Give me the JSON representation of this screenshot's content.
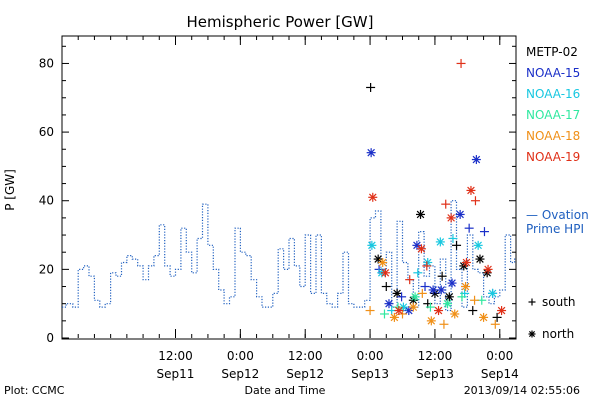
{
  "chart_data": {
    "type": "scatter",
    "title": "Hemispheric Power [GW]",
    "ylabel": "P [GW]",
    "xlabel": "Date and Time",
    "xlim": [
      "2013-09-10T15:00",
      "2013-09-14T03:00"
    ],
    "ylim": [
      0,
      88
    ],
    "yticks": [
      0,
      20,
      40,
      60,
      80
    ],
    "xticks": [
      {
        "x": "2013-09-11T12:00",
        "time": "12:00",
        "date": "Sep11"
      },
      {
        "x": "2013-09-12T00:00",
        "time": "0:00",
        "date": "Sep12"
      },
      {
        "x": "2013-09-12T12:00",
        "time": "12:00",
        "date": "Sep12"
      },
      {
        "x": "2013-09-13T00:00",
        "time": "0:00",
        "date": "Sep13"
      },
      {
        "x": "2013-09-13T12:00",
        "time": "12:00",
        "date": "Sep13"
      },
      {
        "x": "2013-09-14T00:00",
        "time": "0:00",
        "date": "Sep14"
      }
    ],
    "ovation": {
      "name": "— Ovation Prime HPI",
      "color": "#2060c0",
      "points": [
        [
          "2013-09-10T15:00",
          9
        ],
        [
          "2013-09-10T16:30",
          10
        ],
        [
          "2013-09-10T17:30",
          9
        ],
        [
          "2013-09-10T18:30",
          20
        ],
        [
          "2013-09-10T19:30",
          21
        ],
        [
          "2013-09-10T20:30",
          18
        ],
        [
          "2013-09-10T21:30",
          11
        ],
        [
          "2013-09-10T22:30",
          9
        ],
        [
          "2013-09-10T23:30",
          10
        ],
        [
          "2013-09-11T00:30",
          19
        ],
        [
          "2013-09-11T01:30",
          18
        ],
        [
          "2013-09-11T02:30",
          22
        ],
        [
          "2013-09-11T03:30",
          24
        ],
        [
          "2013-09-11T04:30",
          23
        ],
        [
          "2013-09-11T05:30",
          21
        ],
        [
          "2013-09-11T06:30",
          17
        ],
        [
          "2013-09-11T07:30",
          21
        ],
        [
          "2013-09-11T08:30",
          24
        ],
        [
          "2013-09-11T09:30",
          33
        ],
        [
          "2013-09-11T10:30",
          21
        ],
        [
          "2013-09-11T11:30",
          18
        ],
        [
          "2013-09-11T12:30",
          20
        ],
        [
          "2013-09-11T13:30",
          32
        ],
        [
          "2013-09-11T14:30",
          25
        ],
        [
          "2013-09-11T15:30",
          19
        ],
        [
          "2013-09-11T16:30",
          29
        ],
        [
          "2013-09-11T17:30",
          39
        ],
        [
          "2013-09-11T18:30",
          27
        ],
        [
          "2013-09-11T19:30",
          20
        ],
        [
          "2013-09-11T20:30",
          14
        ],
        [
          "2013-09-11T21:30",
          10
        ],
        [
          "2013-09-11T22:30",
          12
        ],
        [
          "2013-09-11T23:30",
          32
        ],
        [
          "2013-09-12T00:30",
          25
        ],
        [
          "2013-09-12T01:30",
          24
        ],
        [
          "2013-09-12T02:30",
          17
        ],
        [
          "2013-09-12T03:30",
          12
        ],
        [
          "2013-09-12T04:30",
          9
        ],
        [
          "2013-09-12T05:30",
          9
        ],
        [
          "2013-09-12T06:30",
          13
        ],
        [
          "2013-09-12T07:30",
          26
        ],
        [
          "2013-09-12T08:30",
          20
        ],
        [
          "2013-09-12T09:30",
          29
        ],
        [
          "2013-09-12T10:30",
          21
        ],
        [
          "2013-09-12T11:30",
          15
        ],
        [
          "2013-09-12T12:30",
          30
        ],
        [
          "2013-09-12T13:30",
          13
        ],
        [
          "2013-09-12T14:30",
          30
        ],
        [
          "2013-09-12T15:30",
          13
        ],
        [
          "2013-09-12T16:30",
          10
        ],
        [
          "2013-09-12T17:30",
          9
        ],
        [
          "2013-09-12T18:30",
          13
        ],
        [
          "2013-09-12T19:30",
          25
        ],
        [
          "2013-09-12T20:30",
          10
        ],
        [
          "2013-09-12T21:30",
          9
        ],
        [
          "2013-09-12T22:30",
          9
        ],
        [
          "2013-09-12T23:30",
          11
        ],
        [
          "2013-09-13T00:30",
          35
        ],
        [
          "2013-09-13T01:30",
          37
        ],
        [
          "2013-09-13T02:30",
          20
        ],
        [
          "2013-09-13T03:30",
          25
        ],
        [
          "2013-09-13T04:30",
          9
        ],
        [
          "2013-09-13T05:30",
          34
        ],
        [
          "2013-09-13T06:30",
          22
        ],
        [
          "2013-09-13T07:30",
          17
        ],
        [
          "2013-09-13T08:30",
          9
        ],
        [
          "2013-09-13T09:30",
          31
        ],
        [
          "2013-09-13T10:30",
          18
        ],
        [
          "2013-09-13T11:30",
          21
        ],
        [
          "2013-09-13T12:30",
          10
        ],
        [
          "2013-09-13T13:30",
          23
        ],
        [
          "2013-09-13T14:30",
          8
        ],
        [
          "2013-09-13T15:30",
          40
        ],
        [
          "2013-09-13T16:30",
          20
        ],
        [
          "2013-09-13T17:30",
          9
        ],
        [
          "2013-09-13T18:30",
          30
        ],
        [
          "2013-09-13T19:30",
          20
        ],
        [
          "2013-09-13T20:30",
          19
        ],
        [
          "2013-09-13T21:30",
          12
        ],
        [
          "2013-09-13T22:30",
          10
        ],
        [
          "2013-09-13T23:30",
          12
        ],
        [
          "2013-09-14T00:30",
          14
        ],
        [
          "2013-09-14T01:30",
          30
        ],
        [
          "2013-09-14T02:30",
          22
        ],
        [
          "2013-09-14T03:00",
          23
        ]
      ]
    },
    "series": [
      {
        "name": "METP-02",
        "color": "#000000",
        "points": [
          [
            "2013-09-13T00:06",
            73,
            "+"
          ],
          [
            "2013-09-13T01:30",
            23,
            "*"
          ],
          [
            "2013-09-13T03:00",
            15,
            "+"
          ],
          [
            "2013-09-13T05:00",
            13,
            "*"
          ],
          [
            "2013-09-13T08:00",
            11,
            "*"
          ],
          [
            "2013-09-13T09:20",
            36,
            "*"
          ],
          [
            "2013-09-13T10:40",
            10,
            "+"
          ],
          [
            "2013-09-13T12:00",
            13,
            "*"
          ],
          [
            "2013-09-13T13:20",
            18,
            "+"
          ],
          [
            "2013-09-13T14:40",
            12,
            "*"
          ],
          [
            "2013-09-13T16:00",
            27,
            "+"
          ],
          [
            "2013-09-13T17:20",
            21,
            "*"
          ],
          [
            "2013-09-13T19:00",
            8,
            "+"
          ],
          [
            "2013-09-13T20:20",
            23,
            "*"
          ],
          [
            "2013-09-13T21:40",
            19,
            "*"
          ],
          [
            "2013-09-13T23:30",
            6,
            "+"
          ]
        ]
      },
      {
        "name": "NOAA-15",
        "color": "#1a2fc8",
        "points": [
          [
            "2013-09-13T00:12",
            54,
            "*"
          ],
          [
            "2013-09-13T01:40",
            20,
            "+"
          ],
          [
            "2013-09-13T03:30",
            10,
            "*"
          ],
          [
            "2013-09-13T05:50",
            12,
            "+"
          ],
          [
            "2013-09-13T07:10",
            8,
            "*"
          ],
          [
            "2013-09-13T08:40",
            27,
            "*"
          ],
          [
            "2013-09-13T10:10",
            15,
            "+"
          ],
          [
            "2013-09-13T11:40",
            14,
            "*"
          ],
          [
            "2013-09-13T13:10",
            14,
            "*"
          ],
          [
            "2013-09-13T15:10",
            16,
            "*"
          ],
          [
            "2013-09-13T16:40",
            36,
            "*"
          ],
          [
            "2013-09-13T18:20",
            32,
            "+"
          ],
          [
            "2013-09-13T19:40",
            52,
            "*"
          ],
          [
            "2013-09-13T21:10",
            31,
            "+"
          ],
          [
            "2013-09-13T22:40",
            13,
            "+"
          ]
        ]
      },
      {
        "name": "NOAA-16",
        "color": "#18c8e0",
        "points": [
          [
            "2013-09-13T00:20",
            27,
            "*"
          ],
          [
            "2013-09-13T02:10",
            19,
            "*"
          ],
          [
            "2013-09-13T04:00",
            8,
            "+"
          ],
          [
            "2013-09-13T06:10",
            9,
            "*"
          ],
          [
            "2013-09-13T08:50",
            19,
            "+"
          ],
          [
            "2013-09-13T10:40",
            22,
            "*"
          ],
          [
            "2013-09-13T13:00",
            28,
            "*"
          ],
          [
            "2013-09-13T15:20",
            29,
            "+"
          ],
          [
            "2013-09-13T17:30",
            13,
            "+"
          ],
          [
            "2013-09-13T20:00",
            27,
            "*"
          ],
          [
            "2013-09-13T22:40",
            13,
            "*"
          ]
        ]
      },
      {
        "name": "NOAA-17",
        "color": "#30e8a0",
        "points": [
          [
            "2013-09-13T02:40",
            7,
            "+"
          ],
          [
            "2013-09-13T05:10",
            9,
            "+"
          ],
          [
            "2013-09-13T08:20",
            12,
            "*"
          ],
          [
            "2013-09-13T11:10",
            9,
            "+"
          ],
          [
            "2013-09-13T14:20",
            10,
            "*"
          ],
          [
            "2013-09-13T17:00",
            12,
            "+"
          ],
          [
            "2013-09-13T20:40",
            11,
            "+"
          ]
        ]
      },
      {
        "name": "NOAA-18",
        "color": "#f09018",
        "points": [
          [
            "2013-09-13T00:00",
            8,
            "+"
          ],
          [
            "2013-09-13T02:20",
            22,
            "*"
          ],
          [
            "2013-09-13T04:30",
            6,
            "*"
          ],
          [
            "2013-09-13T06:00",
            7,
            "+"
          ],
          [
            "2013-09-13T08:00",
            9,
            "*"
          ],
          [
            "2013-09-13T09:40",
            13,
            "+"
          ],
          [
            "2013-09-13T11:20",
            5,
            "*"
          ],
          [
            "2013-09-13T13:40",
            4,
            "+"
          ],
          [
            "2013-09-13T15:40",
            7,
            "*"
          ],
          [
            "2013-09-13T17:40",
            15,
            "*"
          ],
          [
            "2013-09-13T19:20",
            11,
            "+"
          ],
          [
            "2013-09-13T21:00",
            6,
            "*"
          ],
          [
            "2013-09-13T23:10",
            4,
            "+"
          ]
        ]
      },
      {
        "name": "NOAA-19",
        "color": "#e03018",
        "points": [
          [
            "2013-09-13T00:30",
            41,
            "*"
          ],
          [
            "2013-09-13T02:50",
            19,
            "*"
          ],
          [
            "2013-09-13T05:20",
            8,
            "*"
          ],
          [
            "2013-09-13T07:20",
            17,
            "+"
          ],
          [
            "2013-09-13T09:30",
            26,
            "*"
          ],
          [
            "2013-09-13T10:30",
            21,
            "+"
          ],
          [
            "2013-09-13T12:40",
            8,
            "*"
          ],
          [
            "2013-09-13T14:00",
            39,
            "+"
          ],
          [
            "2013-09-13T15:00",
            35,
            "*"
          ],
          [
            "2013-09-13T16:50",
            80,
            "+"
          ],
          [
            "2013-09-13T17:50",
            22,
            "*"
          ],
          [
            "2013-09-13T18:40",
            43,
            "*"
          ],
          [
            "2013-09-13T19:30",
            40,
            "+"
          ],
          [
            "2013-09-13T21:50",
            20,
            "*"
          ],
          [
            "2013-09-14T00:20",
            8,
            "*"
          ]
        ]
      }
    ],
    "marker_legend": [
      {
        "symbol": "+",
        "label": "south"
      },
      {
        "symbol": "*",
        "label": "north"
      }
    ]
  },
  "footer": {
    "left": "Plot: CCMC",
    "right": "2013/09/14 02:55:06"
  }
}
